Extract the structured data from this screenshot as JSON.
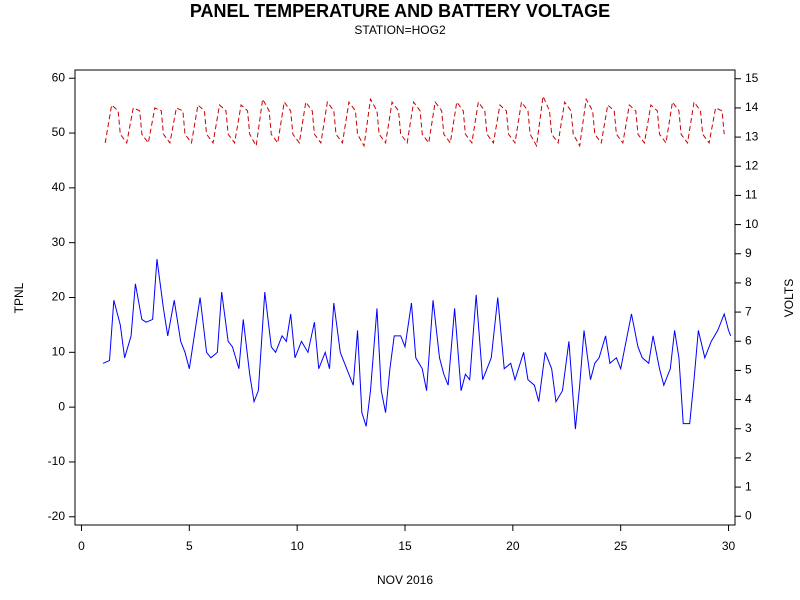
{
  "chart_data": {
    "type": "line",
    "title": "PANEL TEMPERATURE AND BATTERY VOLTAGE",
    "subtitle": "STATION=HOG2",
    "xlabel": "NOV 2016",
    "ylabel": "TPNL",
    "y2label": "VOLTS",
    "xlim": [
      -0.3,
      30.3
    ],
    "xticks": [
      0,
      5,
      10,
      15,
      20,
      25,
      30
    ],
    "ylim": [
      -21.5,
      61.5
    ],
    "yticks": [
      -20,
      -10,
      0,
      10,
      20,
      30,
      40,
      50,
      60
    ],
    "y2lim": [
      -0.3,
      15.3
    ],
    "y2ticks": [
      0,
      1,
      2,
      3,
      4,
      5,
      6,
      7,
      8,
      9,
      10,
      11,
      12,
      13,
      14,
      15
    ],
    "series": [
      {
        "name": "TPNL",
        "color": "#0000ff",
        "dash": false,
        "x": [
          1.0,
          1.3,
          1.5,
          1.8,
          2.0,
          2.3,
          2.5,
          2.8,
          3.0,
          3.3,
          3.5,
          3.8,
          4.0,
          4.3,
          4.6,
          4.8,
          5.0,
          5.5,
          5.8,
          6.0,
          6.3,
          6.5,
          6.8,
          7.0,
          7.3,
          7.5,
          7.8,
          8.0,
          8.2,
          8.5,
          8.8,
          9.0,
          9.3,
          9.5,
          9.7,
          9.9,
          10.2,
          10.5,
          10.8,
          11.0,
          11.3,
          11.5,
          11.7,
          12.0,
          12.3,
          12.6,
          12.8,
          13.0,
          13.2,
          13.4,
          13.7,
          13.9,
          14.1,
          14.3,
          14.5,
          14.8,
          15.0,
          15.3,
          15.5,
          15.8,
          16.0,
          16.3,
          16.6,
          16.8,
          17.0,
          17.3,
          17.6,
          17.8,
          18.0,
          18.3,
          18.6,
          18.8,
          19.0,
          19.3,
          19.6,
          19.9,
          20.1,
          20.5,
          20.7,
          21.0,
          21.2,
          21.5,
          21.8,
          22.0,
          22.3,
          22.6,
          22.9,
          23.1,
          23.3,
          23.6,
          23.8,
          24.0,
          24.3,
          24.5,
          24.8,
          25.0,
          25.5,
          25.8,
          26.0,
          26.3,
          26.5,
          26.8,
          27.0,
          27.3,
          27.5,
          27.7,
          27.9,
          28.2,
          28.4,
          28.6,
          28.9,
          29.2,
          29.5,
          29.8,
          30.0,
          30.1
        ],
        "values": [
          8,
          8.5,
          19.5,
          15,
          9,
          13,
          22.5,
          16,
          15.5,
          16,
          27,
          18,
          13,
          19.5,
          12,
          10,
          7,
          20,
          10,
          9,
          10,
          21,
          12,
          11,
          7,
          16,
          6,
          1,
          3,
          21,
          11,
          10,
          13,
          12,
          17,
          9,
          12,
          10,
          15.5,
          7,
          10,
          7,
          19,
          10,
          7,
          4,
          14,
          -1,
          -3.5,
          3,
          18,
          3,
          -1,
          7,
          13,
          13,
          11,
          19,
          9,
          7,
          3,
          19.5,
          9,
          6,
          4,
          18,
          3,
          6,
          5,
          20.5,
          5,
          7,
          9,
          20,
          7,
          8,
          5,
          10,
          5,
          4,
          1,
          10,
          7,
          1,
          3,
          12,
          -4,
          4,
          14,
          5,
          8,
          9,
          13,
          8,
          9,
          7,
          17,
          11,
          9,
          8,
          13,
          7,
          4,
          7,
          14,
          9,
          -3,
          -3,
          5,
          14,
          9,
          12,
          14,
          17,
          14,
          13
        ]
      },
      {
        "name": "VOLTS",
        "color": "#cc0000",
        "dash": true,
        "axis": "y2",
        "x": [
          1.1,
          1.4,
          1.7,
          1.8,
          2.1,
          2.4,
          2.7,
          2.8,
          3.1,
          3.4,
          3.7,
          3.8,
          4.1,
          4.4,
          4.7,
          4.8,
          5.1,
          5.4,
          5.7,
          5.8,
          6.1,
          6.4,
          6.7,
          6.8,
          7.1,
          7.4,
          7.7,
          7.8,
          8.1,
          8.4,
          8.7,
          8.8,
          9.1,
          9.4,
          9.7,
          9.8,
          10.1,
          10.4,
          10.7,
          10.8,
          11.1,
          11.4,
          11.7,
          11.8,
          12.1,
          12.4,
          12.7,
          12.8,
          13.1,
          13.4,
          13.7,
          13.8,
          14.1,
          14.4,
          14.7,
          14.8,
          15.1,
          15.4,
          15.7,
          15.8,
          16.1,
          16.4,
          16.7,
          16.8,
          17.1,
          17.4,
          17.7,
          17.8,
          18.1,
          18.4,
          18.7,
          18.8,
          19.1,
          19.4,
          19.7,
          19.8,
          20.1,
          20.4,
          20.7,
          20.8,
          21.1,
          21.4,
          21.7,
          21.8,
          22.1,
          22.4,
          22.7,
          22.8,
          23.1,
          23.4,
          23.7,
          23.8,
          24.1,
          24.4,
          24.7,
          24.8,
          25.1,
          25.4,
          25.7,
          25.8,
          26.1,
          26.4,
          26.7,
          26.8,
          27.1,
          27.4,
          27.7,
          27.8,
          28.1,
          28.4,
          28.7,
          28.8,
          29.1,
          29.4,
          29.7,
          29.8
        ],
        "values": [
          12.8,
          14.1,
          13.9,
          13.1,
          12.8,
          14.0,
          13.9,
          13.1,
          12.8,
          14.0,
          13.9,
          13.1,
          12.8,
          14.0,
          13.9,
          13.1,
          12.8,
          14.1,
          13.9,
          13.1,
          12.8,
          14.1,
          13.9,
          13.1,
          12.8,
          14.1,
          13.9,
          13.1,
          12.7,
          14.3,
          13.9,
          13.1,
          12.8,
          14.2,
          13.9,
          13.1,
          12.8,
          14.2,
          13.9,
          13.1,
          12.8,
          14.2,
          13.9,
          13.1,
          12.8,
          14.2,
          13.9,
          13.1,
          12.7,
          14.3,
          13.9,
          13.1,
          12.8,
          14.2,
          13.9,
          13.1,
          12.8,
          14.2,
          13.9,
          13.1,
          12.8,
          14.2,
          13.9,
          13.1,
          12.8,
          14.2,
          13.9,
          13.1,
          12.8,
          14.2,
          13.9,
          13.1,
          12.8,
          14.1,
          13.9,
          13.1,
          12.8,
          14.2,
          13.9,
          13.1,
          12.7,
          14.4,
          13.9,
          13.1,
          12.8,
          14.2,
          13.9,
          13.1,
          12.7,
          14.3,
          13.9,
          13.1,
          12.8,
          14.1,
          13.9,
          13.1,
          12.8,
          14.1,
          13.9,
          13.1,
          12.8,
          14.1,
          13.9,
          13.1,
          12.8,
          14.2,
          13.9,
          13.1,
          12.8,
          14.2,
          13.9,
          13.1,
          12.8,
          14.0,
          13.9,
          13.1
        ]
      }
    ]
  }
}
